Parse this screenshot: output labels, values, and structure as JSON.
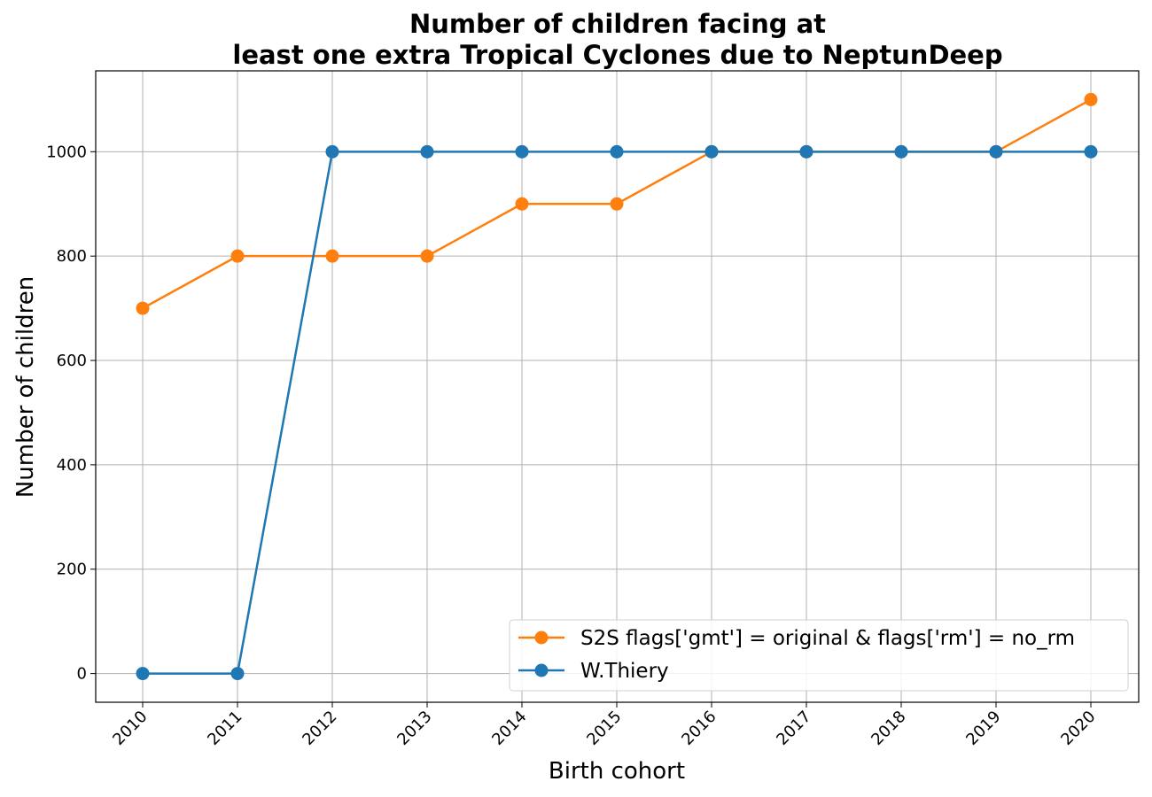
{
  "chart_data": {
    "type": "line",
    "title_line1": "Number of children facing at",
    "title_line2": "least one extra Tropical Cyclones due to NeptunDeep",
    "xlabel": "Birth cohort",
    "ylabel": "Number of children",
    "x": [
      "2010",
      "2011",
      "2012",
      "2013",
      "2014",
      "2015",
      "2016",
      "2017",
      "2018",
      "2019",
      "2020"
    ],
    "ylim": [
      -55,
      1155
    ],
    "yticks": [
      0,
      200,
      400,
      600,
      800,
      1000
    ],
    "grid": true,
    "legend_position": "lower-right",
    "series": [
      {
        "name": "S2S flags['gmt'] = original & flags['rm'] = no_rm",
        "color": "#ff7f0e",
        "values": [
          700,
          800,
          800,
          800,
          900,
          900,
          1000,
          1000,
          1000,
          1000,
          1100
        ]
      },
      {
        "name": "W.Thiery",
        "color": "#1f77b4",
        "values": [
          0,
          0,
          1000,
          1000,
          1000,
          1000,
          1000,
          1000,
          1000,
          1000,
          1000
        ]
      }
    ]
  }
}
